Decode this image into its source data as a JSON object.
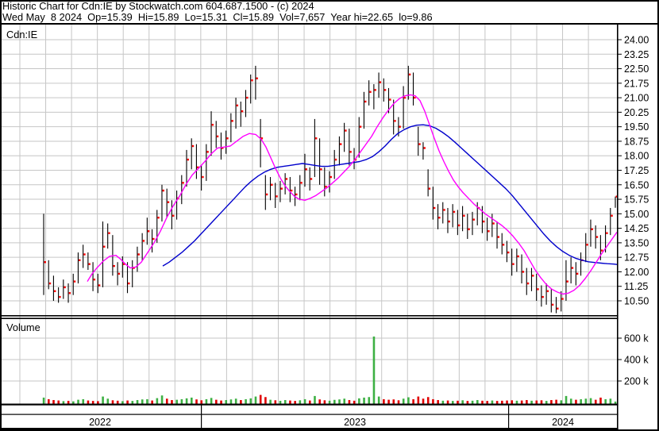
{
  "title_bar": {
    "line1": "Historic Chart for Cdn:IE by Stockwatch.com 604.687.1500 - (c) 2024",
    "line2": "Wed May  8 2024  Op=15.39  Hi=15.89  Lo=15.31  Cl=15.89  Vol=7,657  Year hi=22.65  lo=9.86"
  },
  "chart": {
    "symbol_label": "Cdn:IE",
    "volume_label": "Volume",
    "year_axis": [
      "2022",
      "2023",
      "2024"
    ],
    "price_axis": {
      "labels": [
        "24.00",
        "23.25",
        "22.50",
        "21.75",
        "21.00",
        "20.25",
        "19.50",
        "18.75",
        "18.00",
        "17.25",
        "16.50",
        "15.75",
        "15.00",
        "14.25",
        "13.50",
        "12.75",
        "12.00",
        "11.25",
        "10.50"
      ],
      "top_value": 24.0,
      "step": 0.75,
      "range": [
        10.5,
        24.0
      ]
    },
    "volume_axis": {
      "labels": [
        "600 k",
        "400 k",
        "200 k"
      ],
      "values_k": [
        600,
        400,
        200
      ]
    },
    "colors": {
      "up": "#3db043",
      "down": "#e00000",
      "bar": "#000000",
      "close_tick": "#ff0000",
      "ma_fast": "#ff00ff",
      "ma_slow": "#0000cc",
      "grid": "#c6c6c6",
      "frame": "#000000"
    }
  },
  "chart_data": {
    "type": "ohlc",
    "title": "Historic Chart for Cdn:IE",
    "bars_format": [
      "high",
      "low",
      "close",
      "volume_k"
    ],
    "grid": true,
    "legend_position": "none",
    "bars": [
      [
        15.0,
        10.8,
        12.5,
        45
      ],
      [
        12.6,
        11.1,
        11.4,
        30
      ],
      [
        11.8,
        10.5,
        11.0,
        22
      ],
      [
        11.2,
        10.4,
        10.7,
        18
      ],
      [
        11.6,
        10.6,
        11.2,
        12
      ],
      [
        11.4,
        10.4,
        10.9,
        15
      ],
      [
        11.9,
        10.8,
        11.5,
        10
      ],
      [
        13.0,
        11.4,
        12.6,
        25
      ],
      [
        13.4,
        12.2,
        12.9,
        30
      ],
      [
        13.0,
        12.1,
        12.4,
        18
      ],
      [
        12.5,
        11.0,
        11.6,
        14
      ],
      [
        11.9,
        10.9,
        11.3,
        12
      ],
      [
        14.6,
        11.2,
        13.3,
        55
      ],
      [
        14.5,
        13.2,
        14.0,
        35
      ],
      [
        13.9,
        11.8,
        12.3,
        20
      ],
      [
        12.5,
        11.3,
        11.9,
        16
      ],
      [
        12.8,
        11.7,
        12.4,
        12
      ],
      [
        12.5,
        10.9,
        11.4,
        18
      ],
      [
        12.6,
        11.2,
        12.2,
        14
      ],
      [
        13.3,
        12.0,
        12.9,
        22
      ],
      [
        14.0,
        12.6,
        13.6,
        28
      ],
      [
        14.8,
        13.4,
        14.1,
        30
      ],
      [
        14.2,
        13.0,
        13.7,
        18
      ],
      [
        15.2,
        13.5,
        14.8,
        40
      ],
      [
        16.5,
        14.6,
        16.2,
        65
      ],
      [
        16.3,
        14.8,
        15.6,
        35
      ],
      [
        15.7,
        14.2,
        14.9,
        22
      ],
      [
        16.2,
        14.7,
        15.8,
        25
      ],
      [
        17.0,
        15.5,
        16.6,
        30
      ],
      [
        18.3,
        16.4,
        17.8,
        38
      ],
      [
        18.9,
        17.3,
        18.5,
        45
      ],
      [
        18.6,
        16.8,
        17.4,
        28
      ],
      [
        17.5,
        16.2,
        16.9,
        20
      ],
      [
        18.6,
        16.7,
        18.2,
        30
      ],
      [
        20.3,
        18.0,
        19.6,
        42
      ],
      [
        19.8,
        18.4,
        19.0,
        25
      ],
      [
        19.2,
        17.8,
        18.4,
        18
      ],
      [
        19.3,
        18.1,
        18.9,
        22
      ],
      [
        20.2,
        18.7,
        19.8,
        28
      ],
      [
        21.0,
        19.4,
        20.6,
        35
      ],
      [
        20.8,
        19.5,
        20.3,
        22
      ],
      [
        21.4,
        20.0,
        21.0,
        30
      ],
      [
        22.2,
        20.7,
        21.9,
        38
      ],
      [
        22.65,
        20.9,
        22.0,
        55
      ],
      [
        19.9,
        17.4,
        18.9,
        70
      ],
      [
        17.0,
        15.2,
        16.0,
        50
      ],
      [
        16.9,
        15.7,
        16.5,
        25
      ],
      [
        16.6,
        15.3,
        15.9,
        20
      ],
      [
        16.7,
        15.6,
        16.3,
        15
      ],
      [
        17.1,
        16.0,
        16.8,
        22
      ],
      [
        16.9,
        15.6,
        16.2,
        18
      ],
      [
        16.4,
        15.4,
        16.0,
        14
      ],
      [
        17.0,
        15.7,
        16.6,
        20
      ],
      [
        18.1,
        16.4,
        17.3,
        30
      ],
      [
        17.4,
        16.2,
        16.8,
        18
      ],
      [
        19.9,
        16.9,
        18.9,
        60
      ],
      [
        18.9,
        16.5,
        17.3,
        28
      ],
      [
        17.4,
        15.9,
        16.4,
        20
      ],
      [
        17.2,
        16.1,
        16.9,
        16
      ],
      [
        18.3,
        16.8,
        17.8,
        24
      ],
      [
        19.0,
        17.5,
        18.6,
        28
      ],
      [
        19.7,
        18.2,
        19.3,
        35
      ],
      [
        19.4,
        17.5,
        18.2,
        22
      ],
      [
        18.4,
        17.3,
        17.8,
        16
      ],
      [
        20.0,
        17.9,
        19.5,
        38
      ],
      [
        21.3,
        19.4,
        20.8,
        45
      ],
      [
        21.9,
        20.6,
        21.3,
        50
      ],
      [
        21.7,
        20.4,
        21.4,
        615
      ],
      [
        22.3,
        21.0,
        21.8,
        55
      ],
      [
        22.0,
        20.8,
        21.4,
        30
      ],
      [
        21.5,
        20.2,
        20.9,
        25
      ],
      [
        20.9,
        19.1,
        19.8,
        28
      ],
      [
        20.0,
        19.0,
        19.5,
        20
      ],
      [
        21.6,
        19.4,
        21.0,
        35
      ],
      [
        22.65,
        20.9,
        22.2,
        48
      ],
      [
        22.3,
        20.6,
        21.0,
        30
      ],
      [
        19.5,
        18.0,
        18.6,
        55
      ],
      [
        18.7,
        17.8,
        18.4,
        35
      ],
      [
        17.3,
        15.9,
        16.3,
        50
      ],
      [
        16.4,
        14.7,
        15.3,
        30
      ],
      [
        15.5,
        14.2,
        14.8,
        22
      ],
      [
        15.6,
        14.5,
        15.2,
        16
      ],
      [
        15.3,
        14.0,
        14.6,
        18
      ],
      [
        15.5,
        14.3,
        15.1,
        14
      ],
      [
        15.2,
        13.9,
        14.4,
        16
      ],
      [
        15.4,
        14.1,
        14.9,
        20
      ],
      [
        15.0,
        13.7,
        14.2,
        14
      ],
      [
        15.1,
        13.9,
        14.7,
        16
      ],
      [
        15.6,
        14.4,
        15.3,
        22
      ],
      [
        15.4,
        14.0,
        14.6,
        16
      ],
      [
        14.8,
        13.6,
        14.1,
        14
      ],
      [
        15.0,
        13.8,
        14.5,
        18
      ],
      [
        14.6,
        13.2,
        13.8,
        14
      ],
      [
        14.0,
        12.9,
        13.4,
        16
      ],
      [
        13.6,
        12.5,
        13.0,
        18
      ],
      [
        13.2,
        11.8,
        12.4,
        20
      ],
      [
        13.2,
        12.0,
        12.8,
        16
      ],
      [
        12.9,
        11.4,
        12.0,
        18
      ],
      [
        12.2,
        10.8,
        11.4,
        22
      ],
      [
        12.2,
        11.0,
        11.8,
        16
      ],
      [
        11.9,
        10.5,
        11.1,
        18
      ],
      [
        11.3,
        10.2,
        10.7,
        20
      ],
      [
        11.4,
        10.3,
        11.0,
        14
      ],
      [
        11.1,
        9.9,
        10.3,
        22
      ],
      [
        10.7,
        9.86,
        10.1,
        25
      ],
      [
        11.0,
        9.95,
        10.6,
        20
      ],
      [
        12.6,
        10.5,
        11.5,
        60
      ],
      [
        12.75,
        11.4,
        12.2,
        35
      ],
      [
        12.5,
        11.3,
        11.9,
        25
      ],
      [
        13.0,
        11.8,
        12.6,
        30
      ],
      [
        14.0,
        12.5,
        13.4,
        35
      ],
      [
        14.7,
        13.3,
        14.2,
        40
      ],
      [
        14.4,
        13.2,
        13.8,
        25
      ],
      [
        13.9,
        12.6,
        13.1,
        45
      ],
      [
        14.4,
        13.0,
        14.0,
        30
      ],
      [
        15.3,
        13.9,
        14.9,
        35
      ],
      [
        15.89,
        15.31,
        15.89,
        8
      ]
    ],
    "ma_fast": {
      "name": "short moving average",
      "points": [
        [
          110,
          11.5
        ],
        [
          116,
          11.9
        ],
        [
          122,
          12.2
        ],
        [
          130,
          12.55
        ],
        [
          138,
          12.8
        ],
        [
          146,
          12.85
        ],
        [
          152,
          12.65
        ],
        [
          158,
          12.4
        ],
        [
          164,
          12.2
        ],
        [
          171,
          12.25
        ],
        [
          178,
          12.5
        ],
        [
          186,
          13.0
        ],
        [
          194,
          13.5
        ],
        [
          202,
          14.1
        ],
        [
          210,
          14.8
        ],
        [
          218,
          15.4
        ],
        [
          226,
          15.9
        ],
        [
          234,
          16.5
        ],
        [
          242,
          17.0
        ],
        [
          250,
          17.35
        ],
        [
          258,
          17.7
        ],
        [
          266,
          18.1
        ],
        [
          274,
          18.4
        ],
        [
          282,
          18.45
        ],
        [
          290,
          18.5
        ],
        [
          298,
          18.75
        ],
        [
          306,
          19.0
        ],
        [
          314,
          19.15
        ],
        [
          322,
          19.1
        ],
        [
          329,
          18.85
        ],
        [
          335,
          18.45
        ],
        [
          341,
          17.9
        ],
        [
          347,
          17.35
        ],
        [
          353,
          16.85
        ],
        [
          359,
          16.45
        ],
        [
          365,
          16.15
        ],
        [
          371,
          15.9
        ],
        [
          377,
          15.75
        ],
        [
          384,
          15.7
        ],
        [
          391,
          15.8
        ],
        [
          398,
          15.95
        ],
        [
          405,
          16.15
        ],
        [
          412,
          16.35
        ],
        [
          419,
          16.6
        ],
        [
          426,
          16.85
        ],
        [
          433,
          17.15
        ],
        [
          440,
          17.45
        ],
        [
          447,
          17.8
        ],
        [
          454,
          18.2
        ],
        [
          461,
          18.6
        ],
        [
          468,
          19.0
        ],
        [
          475,
          19.5
        ],
        [
          482,
          19.95
        ],
        [
          489,
          20.35
        ],
        [
          496,
          20.7
        ],
        [
          503,
          20.95
        ],
        [
          510,
          21.1
        ],
        [
          517,
          21.15
        ],
        [
          523,
          21.1
        ],
        [
          529,
          20.85
        ],
        [
          535,
          20.3
        ],
        [
          541,
          19.6
        ],
        [
          547,
          18.9
        ],
        [
          553,
          18.25
        ],
        [
          559,
          17.7
        ],
        [
          565,
          17.2
        ],
        [
          571,
          16.75
        ],
        [
          577,
          16.4
        ],
        [
          583,
          16.1
        ],
        [
          590,
          15.8
        ],
        [
          597,
          15.5
        ],
        [
          604,
          15.25
        ],
        [
          611,
          15.0
        ],
        [
          618,
          14.8
        ],
        [
          625,
          14.6
        ],
        [
          632,
          14.4
        ],
        [
          639,
          14.15
        ],
        [
          646,
          13.85
        ],
        [
          653,
          13.5
        ],
        [
          660,
          13.1
        ],
        [
          667,
          12.6
        ],
        [
          674,
          12.1
        ],
        [
          681,
          11.7
        ],
        [
          688,
          11.35
        ],
        [
          695,
          11.1
        ],
        [
          702,
          10.95
        ],
        [
          709,
          10.85
        ],
        [
          716,
          10.9
        ],
        [
          723,
          11.05
        ],
        [
          730,
          11.3
        ],
        [
          737,
          11.65
        ],
        [
          744,
          12.05
        ],
        [
          751,
          12.5
        ],
        [
          758,
          12.95
        ],
        [
          765,
          13.35
        ],
        [
          771,
          13.7
        ],
        [
          777,
          14.05
        ]
      ]
    },
    "ma_slow": {
      "name": "long moving average",
      "points": [
        [
          205,
          12.3
        ],
        [
          213,
          12.5
        ],
        [
          221,
          12.75
        ],
        [
          229,
          13.0
        ],
        [
          237,
          13.3
        ],
        [
          245,
          13.6
        ],
        [
          253,
          13.95
        ],
        [
          261,
          14.3
        ],
        [
          269,
          14.65
        ],
        [
          277,
          15.0
        ],
        [
          285,
          15.35
        ],
        [
          293,
          15.7
        ],
        [
          301,
          16.05
        ],
        [
          309,
          16.4
        ],
        [
          317,
          16.7
        ],
        [
          325,
          16.95
        ],
        [
          333,
          17.15
        ],
        [
          341,
          17.3
        ],
        [
          349,
          17.4
        ],
        [
          357,
          17.45
        ],
        [
          365,
          17.5
        ],
        [
          373,
          17.55
        ],
        [
          381,
          17.6
        ],
        [
          389,
          17.55
        ],
        [
          397,
          17.5
        ],
        [
          405,
          17.45
        ],
        [
          413,
          17.45
        ],
        [
          421,
          17.5
        ],
        [
          429,
          17.55
        ],
        [
          437,
          17.6
        ],
        [
          445,
          17.65
        ],
        [
          453,
          17.7
        ],
        [
          461,
          17.8
        ],
        [
          469,
          17.95
        ],
        [
          477,
          18.2
        ],
        [
          485,
          18.5
        ],
        [
          493,
          18.85
        ],
        [
          501,
          19.15
        ],
        [
          509,
          19.35
        ],
        [
          517,
          19.5
        ],
        [
          525,
          19.58
        ],
        [
          533,
          19.6
        ],
        [
          541,
          19.55
        ],
        [
          549,
          19.42
        ],
        [
          557,
          19.22
        ],
        [
          565,
          18.98
        ],
        [
          573,
          18.7
        ],
        [
          581,
          18.4
        ],
        [
          589,
          18.1
        ],
        [
          597,
          17.8
        ],
        [
          605,
          17.5
        ],
        [
          613,
          17.2
        ],
        [
          621,
          16.9
        ],
        [
          629,
          16.6
        ],
        [
          637,
          16.3
        ],
        [
          645,
          15.95
        ],
        [
          653,
          15.55
        ],
        [
          661,
          15.15
        ],
        [
          669,
          14.75
        ],
        [
          677,
          14.35
        ],
        [
          685,
          13.95
        ],
        [
          693,
          13.6
        ],
        [
          701,
          13.3
        ],
        [
          709,
          13.05
        ],
        [
          717,
          12.85
        ],
        [
          725,
          12.7
        ],
        [
          733,
          12.6
        ],
        [
          741,
          12.52
        ],
        [
          749,
          12.48
        ],
        [
          757,
          12.45
        ],
        [
          765,
          12.42
        ],
        [
          773,
          12.4
        ],
        [
          777,
          12.38
        ]
      ]
    }
  }
}
